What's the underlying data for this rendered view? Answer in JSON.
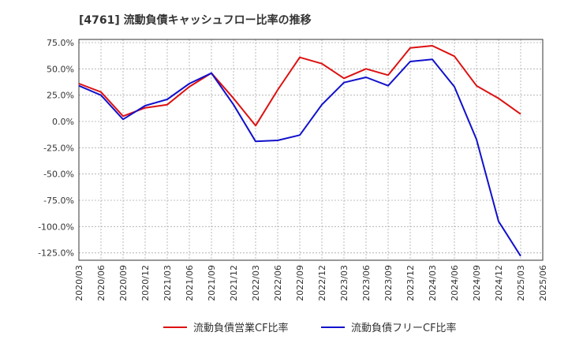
{
  "chart_data": {
    "type": "line",
    "title": "[4761]  流動負債キャッシュフロー比率の推移",
    "xlabel": "",
    "ylabel": "",
    "ylim": [
      -132,
      78
    ],
    "y_ticks": [
      "75.0%",
      "50.0%",
      "25.0%",
      "0.0%",
      "-25.0%",
      "-50.0%",
      "-75.0%",
      "-100.0%",
      "-125.0%"
    ],
    "y_tick_values": [
      75,
      50,
      25,
      0,
      -25,
      -50,
      -75,
      -100,
      -125
    ],
    "x": [
      "2020/03",
      "2020/06",
      "2020/09",
      "2020/12",
      "2021/03",
      "2021/06",
      "2021/09",
      "2021/12",
      "2022/03",
      "2022/06",
      "2022/09",
      "2022/12",
      "2023/03",
      "2023/06",
      "2023/09",
      "2023/12",
      "2024/03",
      "2024/06",
      "2024/09",
      "2024/12",
      "2025/03",
      "2025/06"
    ],
    "grid": true,
    "legend_position": "bottom",
    "series": [
      {
        "name": "流動負債営業CF比率",
        "color": "#dd1111",
        "values": [
          36,
          28,
          5,
          13,
          16,
          33,
          46,
          22,
          -4,
          30,
          61,
          55,
          41,
          50,
          44,
          70,
          72,
          62,
          34,
          22,
          7,
          null
        ]
      },
      {
        "name": "流動負債フリーCF比率",
        "color": "#1111cc",
        "values": [
          34,
          25,
          2,
          15,
          21,
          36,
          46,
          16,
          -19,
          -18,
          -13,
          16,
          37,
          42,
          34,
          57,
          59,
          33,
          -17,
          -95,
          -128,
          null
        ]
      }
    ]
  }
}
